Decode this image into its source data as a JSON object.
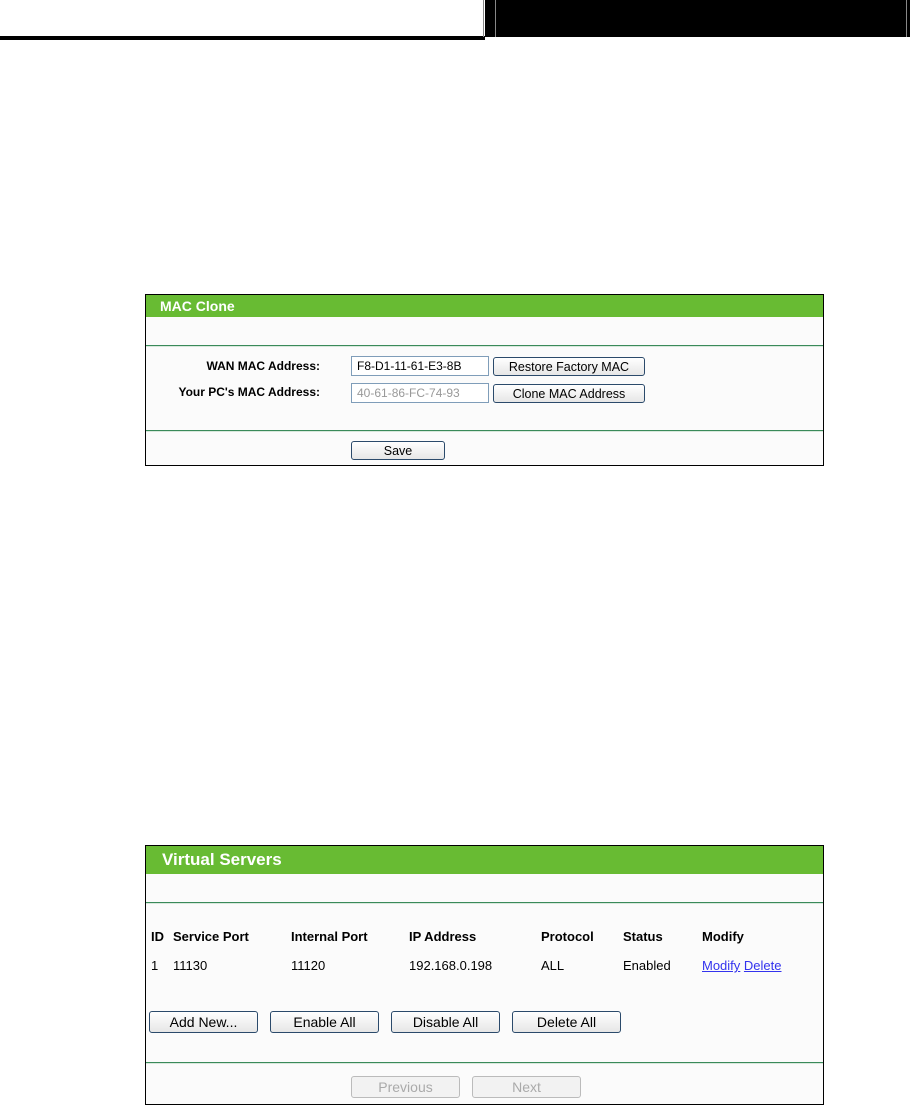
{
  "mac_clone": {
    "title": "MAC Clone",
    "wan_label": "WAN MAC Address:",
    "wan_value": "F8-D1-11-61-E3-8B",
    "restore_button": "Restore Factory MAC",
    "pc_label": "Your PC's MAC Address:",
    "pc_value": "40-61-86-FC-74-93",
    "clone_button": "Clone MAC Address",
    "save_button": "Save"
  },
  "virtual_servers": {
    "title": "Virtual Servers",
    "columns": [
      "ID",
      "Service Port",
      "Internal Port",
      "IP Address",
      "Protocol",
      "Status",
      "Modify"
    ],
    "rows": [
      {
        "id": "1",
        "service_port": "11130",
        "internal_port": "11120",
        "ip": "192.168.0.198",
        "protocol": "ALL",
        "status": "Enabled",
        "modify": "Modify",
        "delete": "Delete"
      }
    ],
    "buttons": {
      "add": "Add New...",
      "enable": "Enable All",
      "disable": "Disable All",
      "delete": "Delete All"
    },
    "previous": "Previous",
    "next": "Next"
  },
  "colors": {
    "header_green": "#68bb33",
    "link": "#3333ee"
  }
}
